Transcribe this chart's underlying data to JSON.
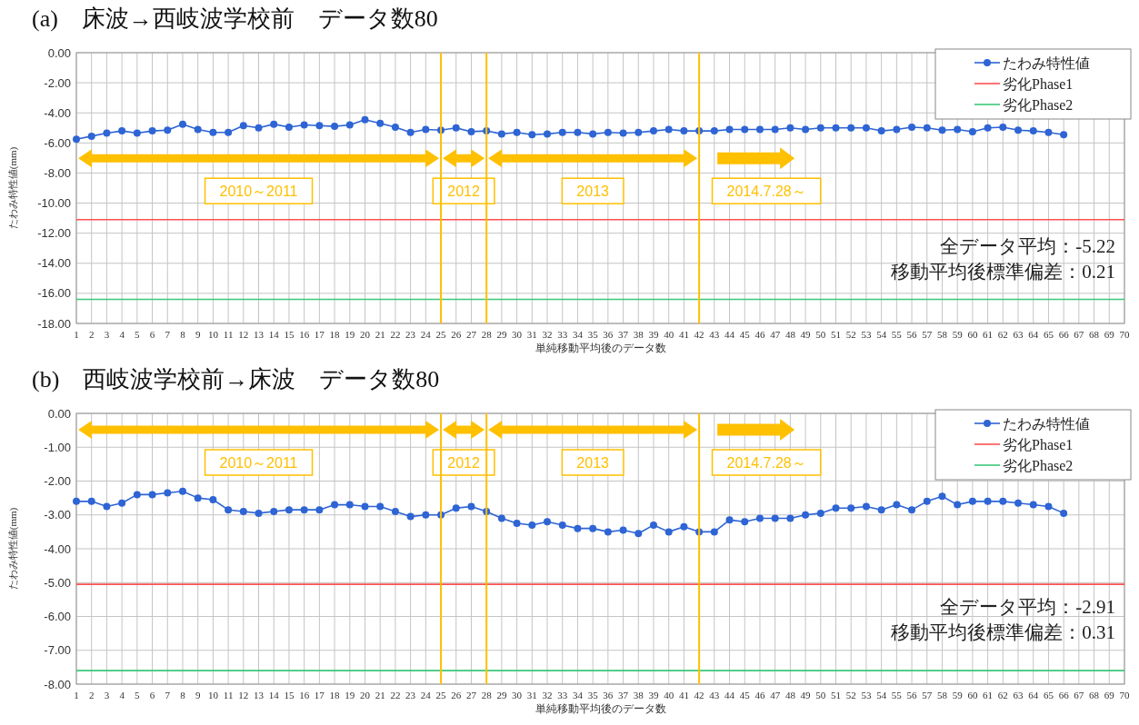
{
  "chart_data": [
    {
      "type": "line",
      "title": "(a)　床波→西岐波学校前　データ数80",
      "xlabel": "単純移動平均後のデータ数",
      "ylabel": "たわみ特性値(mm)",
      "series": [
        {
          "name": "たわみ特性値",
          "color": "#2e64d4",
          "marker": "circle",
          "x": [
            1,
            2,
            3,
            4,
            5,
            6,
            7,
            8,
            9,
            10,
            11,
            12,
            13,
            14,
            15,
            16,
            17,
            18,
            19,
            20,
            21,
            22,
            23,
            24,
            25,
            26,
            27,
            28,
            29,
            30,
            31,
            32,
            33,
            34,
            35,
            36,
            37,
            38,
            39,
            40,
            41,
            42,
            43,
            44,
            45,
            46,
            47,
            48,
            49,
            50,
            51,
            52,
            53,
            54,
            55,
            56,
            57,
            58,
            59,
            60,
            61,
            62,
            63,
            64,
            65,
            66
          ],
          "values": [
            -5.75,
            -5.55,
            -5.35,
            -5.2,
            -5.35,
            -5.2,
            -5.15,
            -4.75,
            -5.1,
            -5.3,
            -5.3,
            -4.85,
            -5.0,
            -4.75,
            -4.95,
            -4.8,
            -4.85,
            -4.9,
            -4.8,
            -4.45,
            -4.7,
            -4.95,
            -5.3,
            -5.1,
            -5.15,
            -5.0,
            -5.25,
            -5.2,
            -5.4,
            -5.3,
            -5.45,
            -5.4,
            -5.3,
            -5.3,
            -5.4,
            -5.3,
            -5.35,
            -5.3,
            -5.2,
            -5.1,
            -5.2,
            -5.2,
            -5.2,
            -5.1,
            -5.1,
            -5.1,
            -5.1,
            -5.0,
            -5.1,
            -5.0,
            -5.0,
            -5.0,
            -5.0,
            -5.2,
            -5.1,
            -4.95,
            -5.0,
            -5.15,
            -5.1,
            -5.25,
            -5.0,
            -4.95,
            -5.15,
            -5.2,
            -5.3,
            -5.45
          ]
        },
        {
          "name": "劣化Phase1",
          "color": "#ff5050",
          "x": [
            1,
            70
          ],
          "values": [
            -11.1,
            -11.1
          ]
        },
        {
          "name": "劣化Phase2",
          "color": "#3cc878",
          "x": [
            1,
            70
          ],
          "values": [
            -16.4,
            -16.4
          ]
        }
      ],
      "xlim": [
        1,
        70
      ],
      "xticks": [
        1,
        2,
        3,
        4,
        5,
        6,
        7,
        8,
        9,
        10,
        11,
        12,
        13,
        14,
        15,
        16,
        17,
        18,
        19,
        20,
        21,
        22,
        23,
        24,
        25,
        26,
        27,
        28,
        29,
        30,
        31,
        32,
        33,
        34,
        35,
        36,
        37,
        38,
        39,
        40,
        41,
        42,
        43,
        44,
        45,
        46,
        47,
        48,
        49,
        50,
        51,
        52,
        53,
        54,
        55,
        56,
        57,
        58,
        59,
        60,
        61,
        62,
        63,
        64,
        65,
        66,
        67,
        68,
        69,
        70
      ],
      "ylim": [
        -18,
        0
      ],
      "yticks": [
        {
          "value": 0,
          "label": "0.00"
        },
        {
          "value": -2,
          "label": "-2.00"
        },
        {
          "value": -4,
          "label": "-4.00"
        },
        {
          "value": -6,
          "label": "-6.00"
        },
        {
          "value": -8,
          "label": "-8.00"
        },
        {
          "value": -10,
          "label": "-10.00"
        },
        {
          "value": -12,
          "label": "-12.00"
        },
        {
          "value": -14,
          "label": "-14.00"
        },
        {
          "value": -16,
          "label": "-16.00"
        },
        {
          "value": -18,
          "label": "-18.00"
        }
      ],
      "grid": true,
      "legend": "top right",
      "ref_lines": [
        {
          "axis": "x",
          "value": 25,
          "color": "#ffc000"
        },
        {
          "axis": "x",
          "value": 28,
          "color": "#ffc000"
        },
        {
          "axis": "x",
          "value": 42,
          "color": "#ffc000"
        }
      ],
      "annotations": [
        "2010～2011",
        "2012",
        "2013",
        "2014.7.28～",
        "全データ平均：-5.22",
        "移動平均後標準偏差：0.21"
      ]
    },
    {
      "type": "line",
      "title": "(b)　西岐波学校前→床波　データ数80",
      "xlabel": "単純移動平均後のデータ数",
      "ylabel": "たわみ特性値(mm)",
      "series": [
        {
          "name": "たわみ特性値",
          "color": "#2e64d4",
          "marker": "circle",
          "x": [
            1,
            2,
            3,
            4,
            5,
            6,
            7,
            8,
            9,
            10,
            11,
            12,
            13,
            14,
            15,
            16,
            17,
            18,
            19,
            20,
            21,
            22,
            23,
            24,
            25,
            26,
            27,
            28,
            29,
            30,
            31,
            32,
            33,
            34,
            35,
            36,
            37,
            38,
            39,
            40,
            41,
            42,
            43,
            44,
            45,
            46,
            47,
            48,
            49,
            50,
            51,
            52,
            53,
            54,
            55,
            56,
            57,
            58,
            59,
            60,
            61,
            62,
            63,
            64,
            65,
            66
          ],
          "values": [
            -2.6,
            -2.6,
            -2.75,
            -2.65,
            -2.4,
            -2.4,
            -2.35,
            -2.3,
            -2.5,
            -2.55,
            -2.85,
            -2.9,
            -2.95,
            -2.9,
            -2.85,
            -2.85,
            -2.85,
            -2.7,
            -2.7,
            -2.75,
            -2.75,
            -2.9,
            -3.05,
            -3.0,
            -3.0,
            -2.8,
            -2.75,
            -2.9,
            -3.1,
            -3.25,
            -3.3,
            -3.2,
            -3.3,
            -3.4,
            -3.4,
            -3.5,
            -3.45,
            -3.55,
            -3.3,
            -3.5,
            -3.35,
            -3.5,
            -3.5,
            -3.15,
            -3.2,
            -3.1,
            -3.1,
            -3.1,
            -3.0,
            -2.95,
            -2.8,
            -2.8,
            -2.75,
            -2.85,
            -2.7,
            -2.85,
            -2.6,
            -2.45,
            -2.7,
            -2.6,
            -2.6,
            -2.6,
            -2.65,
            -2.7,
            -2.75,
            -2.95
          ]
        },
        {
          "name": "劣化Phase1",
          "color": "#ff5050",
          "x": [
            1,
            70
          ],
          "values": [
            -5.05,
            -5.05
          ]
        },
        {
          "name": "劣化Phase2",
          "color": "#3cc878",
          "x": [
            1,
            70
          ],
          "values": [
            -7.6,
            -7.6
          ]
        }
      ],
      "xlim": [
        1,
        70
      ],
      "xticks": [
        1,
        2,
        3,
        4,
        5,
        6,
        7,
        8,
        9,
        10,
        11,
        12,
        13,
        14,
        15,
        16,
        17,
        18,
        19,
        20,
        21,
        22,
        23,
        24,
        25,
        26,
        27,
        28,
        29,
        30,
        31,
        32,
        33,
        34,
        35,
        36,
        37,
        38,
        39,
        40,
        41,
        42,
        43,
        44,
        45,
        46,
        47,
        48,
        49,
        50,
        51,
        52,
        53,
        54,
        55,
        56,
        57,
        58,
        59,
        60,
        61,
        62,
        63,
        64,
        65,
        66,
        67,
        68,
        69,
        70
      ],
      "ylim": [
        -8,
        0
      ],
      "yticks": [
        {
          "value": 0,
          "label": "0.00"
        },
        {
          "value": -1,
          "label": "-1.00"
        },
        {
          "value": -2,
          "label": "-2.00"
        },
        {
          "value": -3,
          "label": "-3.00"
        },
        {
          "value": -4,
          "label": "-4.00"
        },
        {
          "value": -5,
          "label": "-5.00"
        },
        {
          "value": -6,
          "label": "-6.00"
        },
        {
          "value": -7,
          "label": "-7.00"
        },
        {
          "value": -8,
          "label": "-8.00"
        }
      ],
      "grid": true,
      "legend": "top right",
      "ref_lines": [
        {
          "axis": "x",
          "value": 25,
          "color": "#ffc000"
        },
        {
          "axis": "x",
          "value": 28,
          "color": "#ffc000"
        },
        {
          "axis": "x",
          "value": 42,
          "color": "#ffc000"
        }
      ],
      "annotations": [
        "2010～2011",
        "2012",
        "2013",
        "2014.7.28～",
        "全データ平均：-2.91",
        "移動平均後標準偏差：0.31"
      ]
    }
  ]
}
